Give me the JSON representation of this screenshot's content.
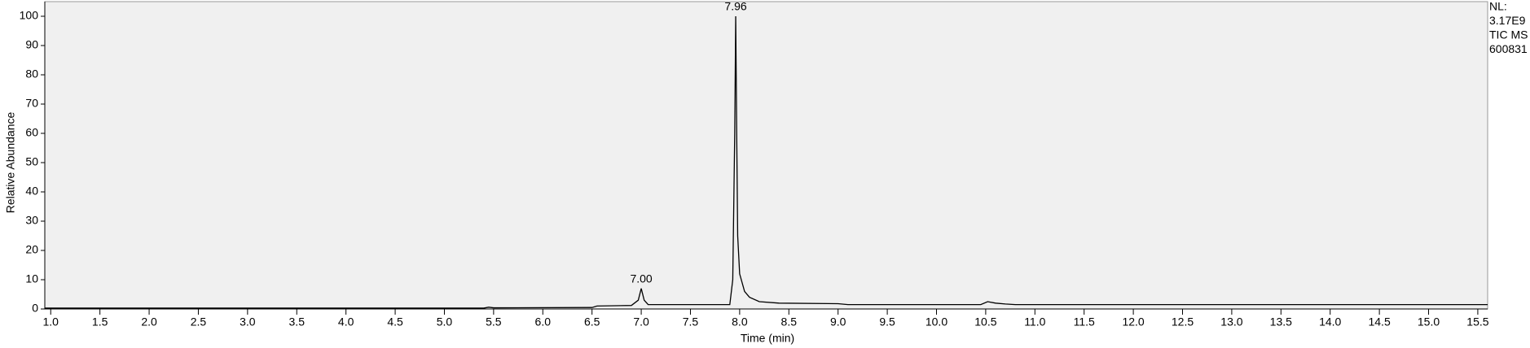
{
  "chart_data": {
    "type": "line",
    "x_label": "Time (min)",
    "y_label": "Relative Abundance",
    "info": [
      "NL:",
      "3.17E9",
      "TIC  MS",
      "600831"
    ],
    "x": [
      0.94,
      5.4,
      5.45,
      5.5,
      6.5,
      6.55,
      6.9,
      6.97,
      7.0,
      7.03,
      7.07,
      7.9,
      7.93,
      7.95,
      7.96,
      7.97,
      7.98,
      8.0,
      8.05,
      8.1,
      8.2,
      8.4,
      9.0,
      9.1,
      10.45,
      10.52,
      10.6,
      10.7,
      10.8,
      15.6
    ],
    "series": [
      {
        "color": "#000000",
        "values": [
          0.3,
          0.3,
          0.6,
          0.4,
          0.5,
          1,
          1.2,
          3,
          7,
          3,
          1.5,
          1.5,
          10,
          60,
          100,
          60,
          25,
          12,
          6,
          4,
          2.5,
          2,
          1.8,
          1.5,
          1.5,
          2.5,
          2,
          1.7,
          1.5,
          1.5
        ]
      }
    ],
    "peak_labels": [
      {
        "text": "7.00",
        "x": 7.0,
        "y": 7
      },
      {
        "text": "7.96",
        "x": 7.96,
        "y": 100
      }
    ],
    "xlim": [
      0.94,
      15.6
    ],
    "ylim": [
      0,
      105
    ],
    "xticks": [
      {
        "value": 1,
        "label": "1.0"
      },
      1.5,
      {
        "value": 2,
        "label": "2.0"
      },
      2.5,
      {
        "value": 3,
        "label": "3.0"
      },
      3.5,
      {
        "value": 4,
        "label": "4.0"
      },
      4.5,
      {
        "value": 5,
        "label": "5.0"
      },
      5.5,
      {
        "value": 6,
        "label": "6.0"
      },
      6.5,
      {
        "value": 7,
        "label": "7.0"
      },
      7.5,
      {
        "value": 8,
        "label": "8.0"
      },
      8.5,
      {
        "value": 9,
        "label": "9.0"
      },
      9.5,
      {
        "value": 10,
        "label": "10.0"
      },
      10.5,
      {
        "value": 11,
        "label": "11.0"
      },
      11.5,
      {
        "value": 12,
        "label": "12.0"
      },
      12.5,
      {
        "value": 13,
        "label": "13.0"
      },
      13.5,
      {
        "value": 14,
        "label": "14.0"
      },
      14.5,
      {
        "value": 15,
        "label": "15.0"
      },
      15.5
    ],
    "yticks": [
      0,
      10,
      20,
      30,
      40,
      50,
      60,
      70,
      80,
      90,
      100
    ],
    "plot_background": "#f0f0f0"
  }
}
